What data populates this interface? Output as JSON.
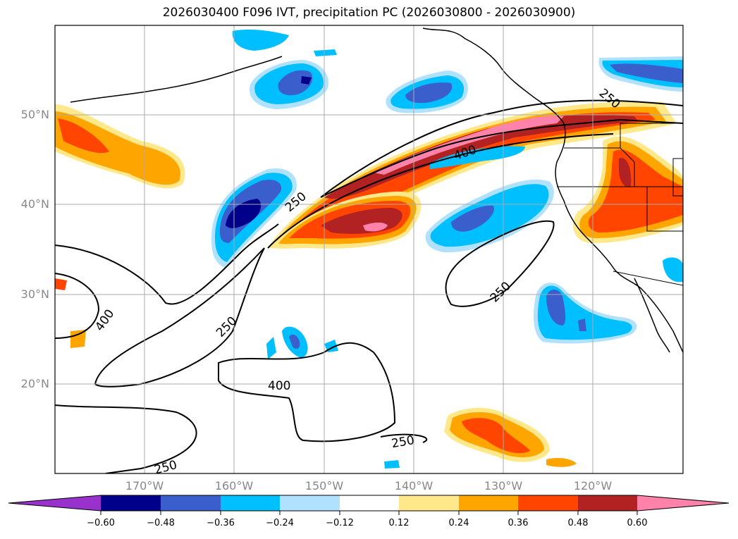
{
  "title": "2026030400 F096 IVT, precipitation PC (2026030800 - 2026030900)",
  "lat_labels": [
    "50°N",
    "40°N",
    "30°N",
    "20°N"
  ],
  "lon_labels": [
    "170°W",
    "160°W",
    "150°W",
    "140°W",
    "130°W",
    "120°W"
  ],
  "colorbar": {
    "ticks": [
      "−0.60",
      "−0.48",
      "−0.36",
      "−0.24",
      "−0.12",
      "0.12",
      "0.24",
      "0.36",
      "0.48",
      "0.60"
    ],
    "colors": [
      "#9932cc",
      "#00008b",
      "#3a5fcd",
      "#00bfff",
      "#b0e2ff",
      "#ffffff",
      "#ffe88a",
      "#ffa500",
      "#ff4500",
      "#b22222",
      "#ff82ab"
    ]
  },
  "contour_labels": [
    "250",
    "400",
    "400",
    "250",
    "250",
    "250",
    "400",
    "250",
    "250"
  ],
  "colors": {
    "neg_dark": "#00008b",
    "neg_mid": "#3a5fcd",
    "neg_light": "#00bfff",
    "neg_pale": "#b0e2ff",
    "pos_pale": "#ffe88a",
    "pos_orange": "#ffa500",
    "pos_red": "#ff4500",
    "pos_dark": "#b22222",
    "pos_pink": "#ff82ab"
  }
}
